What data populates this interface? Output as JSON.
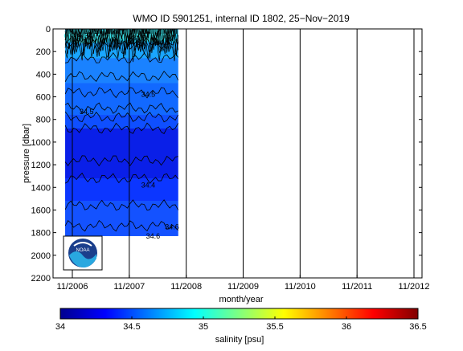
{
  "chart_data": {
    "type": "contour",
    "title": "WMO ID 5901251, internal ID 1802, 25−Nov−2019",
    "xlabel": "month/year",
    "ylabel": "pressure [dbar]",
    "x_ticks": [
      "11/2006",
      "11/2007",
      "11/2008",
      "11/2009",
      "11/2010",
      "11/2011",
      "11/2012"
    ],
    "y_ticks": [
      "0",
      "200",
      "400",
      "600",
      "800",
      "1000",
      "1200",
      "1400",
      "1600",
      "1800",
      "2000",
      "2200"
    ],
    "ylim": [
      0,
      2200
    ],
    "y_reversed": true,
    "x_range": [
      "2006-10",
      "2012-12"
    ],
    "data_extent": {
      "x": [
        "2006-10",
        "2008-11"
      ],
      "pressure_dbar": [
        0,
        1830
      ]
    },
    "colorbar": {
      "label": "salinity [psu]",
      "ticks": [
        "34",
        "34.5",
        "35",
        "35.5",
        "36",
        "36.5"
      ],
      "range": [
        34,
        36.5
      ],
      "colormap": "jet"
    },
    "contour_labels": [
      {
        "text": "35",
        "x": "2006-12",
        "pressure": 90
      },
      {
        "text": "34.7",
        "x": "2007-03",
        "pressure": 60
      },
      {
        "text": "34.9",
        "x": "2007-12",
        "pressure": 120
      },
      {
        "text": "34.5",
        "x": "2008-01",
        "pressure": 80
      },
      {
        "text": "34.6",
        "x": "2008-06",
        "pressure": 120
      },
      {
        "text": "34.5",
        "x": "2008-03",
        "pressure": 580
      },
      {
        "text": "34.5",
        "x": "2007-02",
        "pressure": 730
      },
      {
        "text": "34.4",
        "x": "2008-03",
        "pressure": 1380
      },
      {
        "text": "34.6",
        "x": "2008-08",
        "pressure": 1750
      },
      {
        "text": "34.6",
        "x": "2008-04",
        "pressure": 1830
      }
    ],
    "profile_lines": [
      "2006-11",
      "2007-11",
      "2008-11",
      "2009-11",
      "2010-11",
      "2011-11",
      "2012-11"
    ],
    "grid": false
  },
  "logo": {
    "name": "noaa-logo",
    "text": "NOAA"
  }
}
